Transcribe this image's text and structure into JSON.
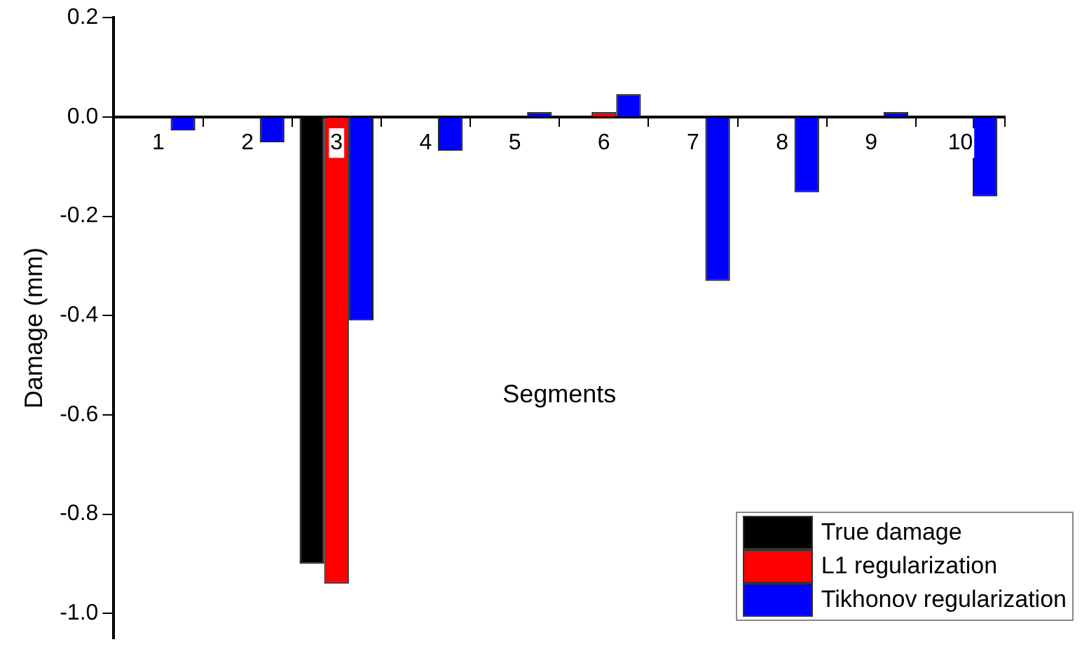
{
  "chart_data": {
    "type": "bar",
    "xlabel": "Segments",
    "ylabel": "Damage (mm)",
    "categories": [
      "1",
      "2",
      "3",
      "4",
      "5",
      "6",
      "7",
      "8",
      "9",
      "10"
    ],
    "series": [
      {
        "name": "True damage",
        "color": "#000000",
        "values": [
          0,
          0,
          -0.9,
          0,
          0,
          0,
          0,
          0,
          0,
          0
        ]
      },
      {
        "name": "L1 regularization",
        "color": "#ff0000",
        "values": [
          0,
          0,
          -0.94,
          0,
          0,
          0.01,
          0,
          0,
          0,
          0
        ]
      },
      {
        "name": "Tikhonov regularization",
        "color": "#0000ff",
        "values": [
          -0.027,
          -0.051,
          -0.41,
          -0.068,
          0.01,
          0.046,
          -0.33,
          -0.152,
          0.01,
          -0.16
        ]
      }
    ],
    "ylim": [
      -1.05,
      0.2
    ],
    "yticks": [
      {
        "value": -1,
        "label": "-1.0"
      },
      -0.8,
      -0.6,
      -0.4,
      -0.2,
      {
        "value": 0,
        "label": "0.0"
      },
      0.2
    ],
    "grid": false,
    "legend": "bottom right"
  }
}
